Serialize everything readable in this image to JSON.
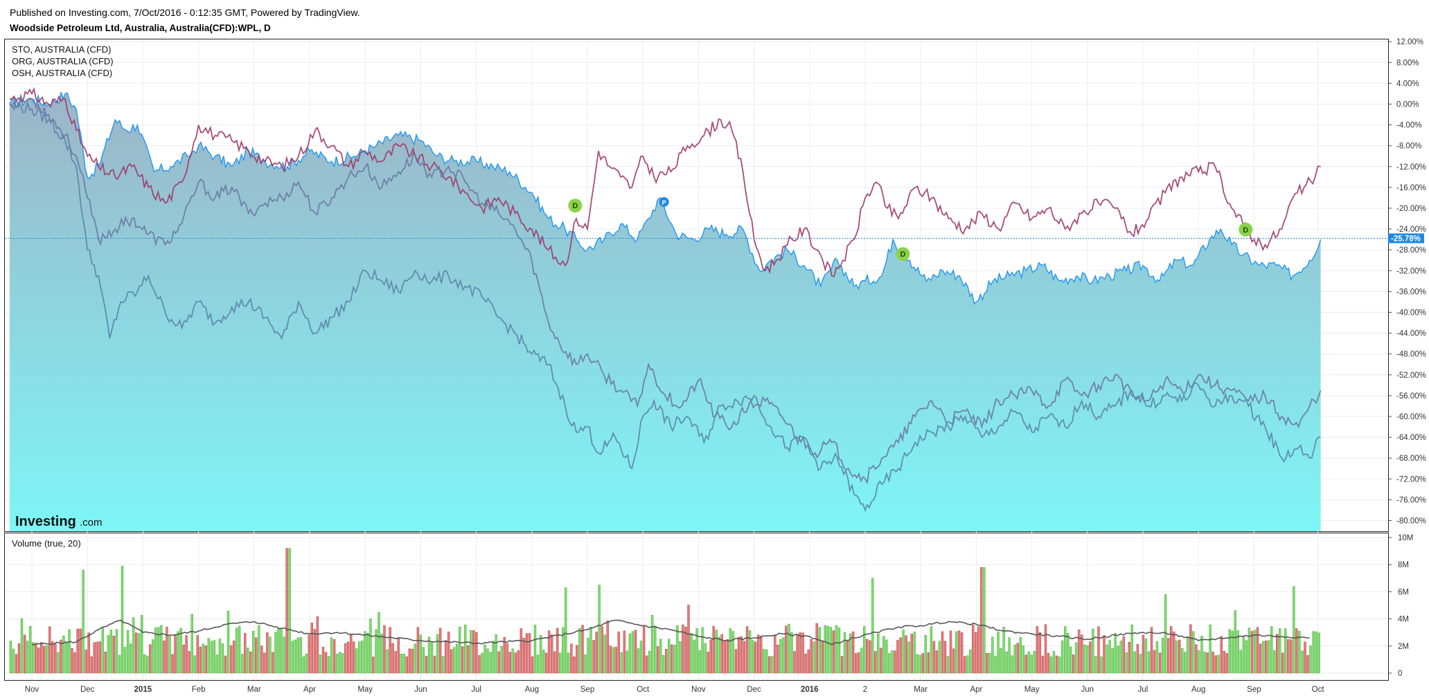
{
  "header": {
    "published": "Published on Investing.com, 7/Oct/2016 - 0:12:35 GMT, Powered by TradingView.",
    "symbol": "Woodside Petroleum Ltd, Australia, Australia(CFD):WPL, D"
  },
  "branding": {
    "logo": "Investing",
    "logo_suffix": ".com"
  },
  "colors": {
    "main_line": "#2196f3",
    "area_top": "#9db4c7",
    "area_bottom": "#7ef6f6",
    "org": "#9c3a68",
    "sto": "#6a78a4",
    "osh": "#5b84aa",
    "vol_up": "#7ddc6b",
    "vol_down": "#e37a7a",
    "vol_ma": "#555555",
    "dividend_marker": "#8bd24a",
    "p_marker": "#1e88e5",
    "last_label": "#1e88e5"
  },
  "chart_data": [
    {
      "type": "line",
      "title": "Woodside Petroleum Ltd, Australia, Australia(CFD):WPL, D",
      "yunit": "%",
      "ylim": [
        -82,
        13
      ],
      "y_ticks": [
        "12.00%",
        "8.00%",
        "4.00%",
        "0.00%",
        "-4.00%",
        "-8.00%",
        "-12.00%",
        "-16.00%",
        "-20.00%",
        "-24.00%",
        "-28.00%",
        "-32.00%",
        "-36.00%",
        "-40.00%",
        "-44.00%",
        "-48.00%",
        "-52.00%",
        "-56.00%",
        "-60.00%",
        "-64.00%",
        "-68.00%",
        "-72.00%",
        "-76.00%",
        "-80.00%"
      ],
      "x_ticks": [
        "Nov",
        "Dec",
        "2015",
        "Feb",
        "Mar",
        "Apr",
        "May",
        "Jun",
        "Jul",
        "Aug",
        "Sep",
        "Oct",
        "Nov",
        "Dec",
        "2016",
        "2",
        "Mar",
        "Apr",
        "May",
        "Jun",
        "Jul",
        "Aug",
        "Sep",
        "Oct"
      ],
      "x_tick_positions": [
        0,
        1,
        2,
        3,
        4,
        5,
        6,
        7,
        8,
        9,
        10,
        11,
        12,
        13,
        14,
        15,
        16,
        17,
        18,
        19,
        20,
        21,
        22,
        23.15
      ],
      "legend": [
        "STO, AUSTRALIA (CFD)",
        "ORG, AUSTRALIA (CFD)",
        "OSH, AUSTRALIA (CFD)"
      ],
      "last_value_label": "-25.78%",
      "last_value": -25.78,
      "series": [
        {
          "name": "WPL",
          "style": "area",
          "x": [
            -0.4,
            0,
            0.3,
            0.6,
            0.8,
            1.0,
            1.2,
            1.5,
            1.7,
            1.9,
            2.2,
            2.5,
            2.8,
            3.0,
            3.3,
            3.6,
            3.9,
            4.2,
            4.6,
            5.0,
            5.4,
            5.8,
            6.2,
            6.6,
            7.0,
            7.3,
            7.6,
            8.0,
            8.3,
            8.6,
            9.0,
            9.3,
            9.6,
            9.8,
            10.0,
            10.3,
            10.6,
            10.9,
            11.1,
            11.3,
            11.6,
            11.9,
            12.2,
            12.5,
            12.8,
            13.1,
            13.3,
            13.6,
            13.9,
            14.2,
            14.5,
            14.8,
            15.0,
            15.3,
            15.5,
            15.8,
            16.1,
            16.4,
            16.7,
            17.0,
            17.3,
            17.6,
            17.9,
            18.2,
            18.5,
            18.8,
            19.1,
            19.4,
            19.7,
            20.0,
            20.3,
            20.6,
            20.9,
            21.2,
            21.4,
            21.6,
            21.8,
            22.1,
            22.4,
            22.7,
            23.0,
            23.2
          ],
          "y": [
            0,
            1,
            0,
            2,
            -1,
            -14,
            -12,
            -3,
            -5,
            -4,
            -13,
            -12,
            -10,
            -8,
            -10,
            -12,
            -9,
            -11,
            -12,
            -9,
            -11,
            -10,
            -8,
            -6,
            -7,
            -10,
            -11,
            -11,
            -12,
            -13,
            -17,
            -22,
            -24,
            -26,
            -28,
            -26,
            -23,
            -26,
            -22,
            -18,
            -25,
            -26,
            -24,
            -25,
            -24,
            -32,
            -30,
            -28,
            -31,
            -35,
            -30,
            -35,
            -34,
            -33,
            -26,
            -30,
            -34,
            -32,
            -33,
            -38,
            -34,
            -33,
            -32,
            -31,
            -34,
            -33,
            -34,
            -33,
            -32,
            -31,
            -34,
            -30,
            -31,
            -26,
            -24,
            -27,
            -29,
            -31,
            -31,
            -33,
            -30,
            -26
          ]
        },
        {
          "name": "ORG, AUSTRALIA (CFD)",
          "style": "line",
          "x": [
            -0.4,
            0,
            0.3,
            0.6,
            0.8,
            1.0,
            1.2,
            1.5,
            1.8,
            2.1,
            2.4,
            2.7,
            3.0,
            3.3,
            3.6,
            3.9,
            4.2,
            4.5,
            4.8,
            5.1,
            5.4,
            5.7,
            6.0,
            6.3,
            6.6,
            6.9,
            7.2,
            7.5,
            7.8,
            8.1,
            8.4,
            8.7,
            9.0,
            9.3,
            9.6,
            9.8,
            10.0,
            10.2,
            10.4,
            10.6,
            10.8,
            11.0,
            11.2,
            11.5,
            11.8,
            12.1,
            12.4,
            12.6,
            12.8,
            13.0,
            13.2,
            13.4,
            13.6,
            13.9,
            14.2,
            14.4,
            14.6,
            14.8,
            15.0,
            15.2,
            15.4,
            15.6,
            15.9,
            16.2,
            16.5,
            16.8,
            17.1,
            17.4,
            17.7,
            18.0,
            18.3,
            18.6,
            18.9,
            19.2,
            19.5,
            19.8,
            20.1,
            20.4,
            20.7,
            21.0,
            21.3,
            21.6,
            21.8,
            22.0,
            22.2,
            22.5,
            22.7,
            22.9,
            23.1,
            23.2
          ],
          "y": [
            1,
            2,
            0,
            1,
            -5,
            -10,
            -12,
            -14,
            -12,
            -16,
            -19,
            -15,
            -4,
            -6,
            -7,
            -9,
            -11,
            -12,
            -10,
            -5,
            -8,
            -12,
            -9,
            -11,
            -8,
            -10,
            -12,
            -14,
            -17,
            -20,
            -18,
            -21,
            -24,
            -28,
            -31,
            -22,
            -24,
            -9,
            -12,
            -14,
            -16,
            -10,
            -14,
            -13,
            -8,
            -6,
            -3,
            -5,
            -13,
            -26,
            -32,
            -30,
            -27,
            -24,
            -29,
            -33,
            -30,
            -26,
            -18,
            -15,
            -20,
            -22,
            -16,
            -18,
            -22,
            -24,
            -21,
            -24,
            -19,
            -22,
            -20,
            -24,
            -21,
            -19,
            -20,
            -25,
            -22,
            -17,
            -14,
            -13,
            -12,
            -20,
            -23,
            -26,
            -27,
            -24,
            -18,
            -16,
            -14,
            -12
          ]
        },
        {
          "name": "STO, AUSTRALIA (CFD)",
          "style": "line",
          "x": [
            -0.4,
            0,
            0.3,
            0.6,
            0.8,
            1.0,
            1.2,
            1.5,
            1.8,
            2.1,
            2.4,
            2.7,
            3.0,
            3.3,
            3.6,
            3.9,
            4.2,
            4.5,
            4.8,
            5.1,
            5.4,
            5.7,
            6.0,
            6.3,
            6.6,
            6.9,
            7.2,
            7.5,
            7.8,
            8.1,
            8.4,
            8.7,
            9.0,
            9.3,
            9.5,
            9.8,
            10.0,
            10.3,
            10.6,
            10.9,
            11.1,
            11.4,
            11.7,
            12.0,
            12.3,
            12.6,
            12.9,
            13.2,
            13.5,
            13.8,
            14.1,
            14.4,
            14.7,
            15.0,
            15.3,
            15.6,
            15.9,
            16.2,
            16.5,
            16.8,
            17.1,
            17.4,
            17.7,
            18.0,
            18.3,
            18.6,
            18.9,
            19.2,
            19.5,
            19.8,
            20.1,
            20.4,
            20.7,
            21.0,
            21.3,
            21.6,
            21.9,
            22.2,
            22.5,
            22.8,
            23.0,
            23.2
          ],
          "y": [
            0,
            1,
            -2,
            -6,
            -10,
            -18,
            -26,
            -24,
            -22,
            -25,
            -27,
            -23,
            -15,
            -18,
            -16,
            -21,
            -19,
            -18,
            -15,
            -21,
            -18,
            -14,
            -12,
            -16,
            -13,
            -10,
            -14,
            -12,
            -15,
            -19,
            -21,
            -24,
            -30,
            -42,
            -46,
            -50,
            -48,
            -52,
            -55,
            -58,
            -50,
            -56,
            -58,
            -53,
            -60,
            -62,
            -58,
            -57,
            -60,
            -64,
            -67,
            -65,
            -70,
            -72,
            -68,
            -65,
            -60,
            -57,
            -61,
            -59,
            -62,
            -57,
            -56,
            -55,
            -58,
            -53,
            -56,
            -54,
            -52,
            -56,
            -57,
            -53,
            -55,
            -52,
            -54,
            -55,
            -57,
            -56,
            -60,
            -62,
            -58,
            -55
          ]
        },
        {
          "name": "OSH, AUSTRALIA (CFD)",
          "style": "line",
          "x": [
            -0.4,
            0,
            0.3,
            0.6,
            0.8,
            1.0,
            1.2,
            1.4,
            1.6,
            1.9,
            2.1,
            2.4,
            2.7,
            3.0,
            3.3,
            3.6,
            3.9,
            4.2,
            4.5,
            4.8,
            5.1,
            5.4,
            5.7,
            6.0,
            6.3,
            6.6,
            6.9,
            7.2,
            7.5,
            7.8,
            8.1,
            8.4,
            8.7,
            9.0,
            9.3,
            9.6,
            9.8,
            10.0,
            10.2,
            10.5,
            10.8,
            11.0,
            11.2,
            11.5,
            11.8,
            12.1,
            12.4,
            12.7,
            13.0,
            13.3,
            13.6,
            13.9,
            14.2,
            14.5,
            14.8,
            15.0,
            15.3,
            15.6,
            15.9,
            16.2,
            16.5,
            16.8,
            17.1,
            17.4,
            17.7,
            18.0,
            18.3,
            18.6,
            18.9,
            19.2,
            19.5,
            19.8,
            20.1,
            20.4,
            20.7,
            21.0,
            21.3,
            21.6,
            21.9,
            22.2,
            22.5,
            22.8,
            23.0,
            23.2
          ],
          "y": [
            0,
            -1,
            -3,
            -7,
            -12,
            -28,
            -33,
            -45,
            -38,
            -36,
            -33,
            -40,
            -43,
            -38,
            -42,
            -39,
            -38,
            -41,
            -45,
            -38,
            -44,
            -41,
            -38,
            -32,
            -34,
            -36,
            -32,
            -34,
            -33,
            -35,
            -37,
            -41,
            -44,
            -48,
            -50,
            -58,
            -63,
            -62,
            -67,
            -64,
            -70,
            -60,
            -57,
            -62,
            -60,
            -65,
            -58,
            -57,
            -56,
            -62,
            -66,
            -64,
            -70,
            -68,
            -75,
            -78,
            -73,
            -70,
            -65,
            -63,
            -62,
            -60,
            -64,
            -62,
            -59,
            -63,
            -60,
            -62,
            -57,
            -60,
            -58,
            -55,
            -58,
            -56,
            -57,
            -54,
            -58,
            -56,
            -58,
            -62,
            -68,
            -66,
            -68,
            -64
          ]
        }
      ],
      "markers": [
        {
          "label": "D",
          "x": 9.78,
          "y": -19.5
        },
        {
          "label": "P",
          "x": 11.38,
          "y": -18.8
        },
        {
          "label": "D",
          "x": 15.68,
          "y": -28.8
        },
        {
          "label": "D",
          "x": 21.85,
          "y": -24.1
        }
      ]
    },
    {
      "type": "bar",
      "title": "Volume (true, 20)",
      "yunit": "M",
      "ylim": [
        0,
        10
      ],
      "y_ticks": [
        "10M",
        "8M",
        "6M",
        "4M",
        "2M",
        "0"
      ],
      "bar_count": 470,
      "avg_volume": 2.7,
      "peaks": [
        {
          "x": 0.9,
          "value": 7.6
        },
        {
          "x": 1.6,
          "value": 7.9
        },
        {
          "x": 4.6,
          "value": 9.2
        },
        {
          "x": 15.1,
          "value": 7.0
        },
        {
          "x": 17.1,
          "value": 7.8
        },
        {
          "x": 9.6,
          "value": 6.3
        },
        {
          "x": 10.2,
          "value": 6.5
        },
        {
          "x": 22.7,
          "value": 6.4
        },
        {
          "x": 20.4,
          "value": 5.8
        }
      ],
      "ma_series": {
        "name": "MA 20",
        "x": [
          0,
          0.8,
          1.2,
          1.6,
          2.0,
          2.5,
          3.0,
          3.5,
          4.0,
          4.5,
          5.0,
          5.5,
          6.0,
          6.5,
          7.0,
          7.5,
          8.0,
          8.5,
          9.0,
          9.5,
          10.0,
          10.5,
          11.0,
          11.5,
          12.0,
          12.5,
          13.0,
          13.5,
          14.0,
          14.4,
          14.8,
          15.2,
          15.6,
          16.0,
          16.5,
          17.0,
          17.5,
          18.0,
          18.5,
          19.0,
          19.5,
          20.0,
          20.5,
          21.0,
          21.5,
          22.0,
          22.5,
          23.0
        ],
        "y": [
          2.1,
          2.3,
          3.2,
          3.9,
          3.0,
          2.8,
          3.1,
          3.6,
          3.8,
          3.3,
          2.9,
          3.0,
          2.8,
          2.6,
          2.4,
          2.3,
          2.2,
          2.3,
          2.4,
          2.8,
          3.2,
          3.9,
          3.5,
          3.2,
          2.7,
          2.4,
          2.6,
          2.9,
          2.7,
          2.1,
          2.6,
          3.0,
          3.4,
          3.5,
          3.8,
          3.6,
          3.1,
          2.9,
          2.7,
          2.5,
          2.8,
          3.0,
          2.9,
          2.4,
          2.6,
          2.8,
          2.7,
          2.6
        ]
      }
    }
  ]
}
